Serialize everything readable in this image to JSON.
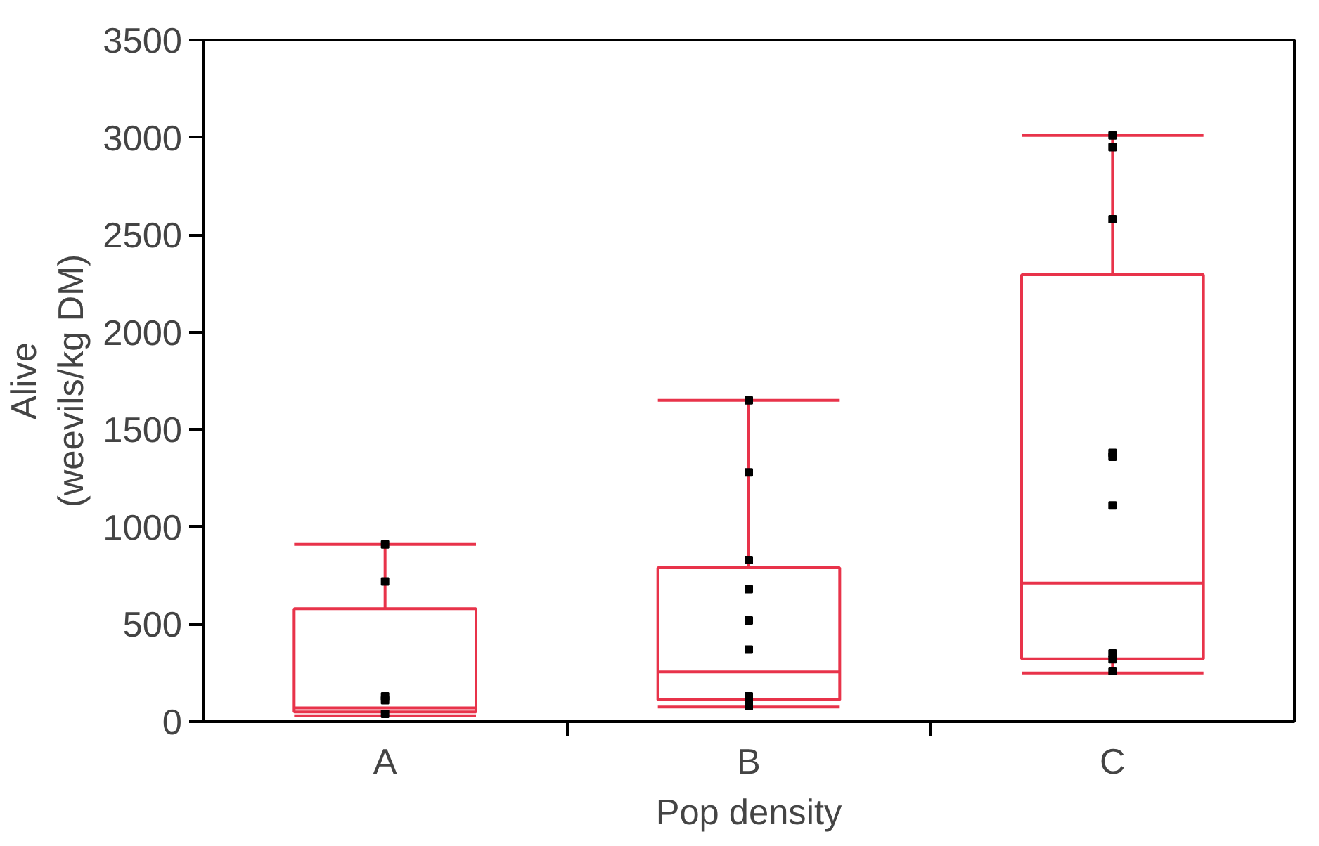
{
  "chart_data": {
    "type": "box",
    "xlabel": "Pop density",
    "ylabel": "Alive\n(weevils/kg DM)",
    "categories": [
      "A",
      "B",
      "C"
    ],
    "series": [
      {
        "type": "box",
        "color": "#e8334a",
        "boxes": [
          {
            "low": 30,
            "q1": 50,
            "median": 70,
            "q3": 580,
            "high": 910
          },
          {
            "low": 75,
            "q1": 112,
            "median": 255,
            "q3": 790,
            "high": 1650
          },
          {
            "low": 250,
            "q1": 322,
            "median": 712,
            "q3": 2295,
            "high": 3010
          }
        ]
      },
      {
        "type": "scatter",
        "color": "#000000",
        "marker": "square",
        "x": [
          "A",
          "A",
          "A",
          "A",
          "A",
          "B",
          "B",
          "B",
          "B",
          "B",
          "B",
          "B",
          "B",
          "B",
          "C",
          "C",
          "C",
          "C",
          "C",
          "C",
          "C",
          "C",
          "C"
        ],
        "values": [
          910,
          720,
          130,
          110,
          40,
          1650,
          1280,
          830,
          680,
          520,
          370,
          130,
          100,
          80,
          3010,
          2950,
          2580,
          1380,
          1360,
          1110,
          350,
          320,
          260
        ]
      }
    ],
    "ylim": [
      0,
      3500
    ],
    "yticks": [
      0,
      500,
      1000,
      1500,
      2000,
      2500,
      3000,
      3500
    ],
    "grid": false
  }
}
